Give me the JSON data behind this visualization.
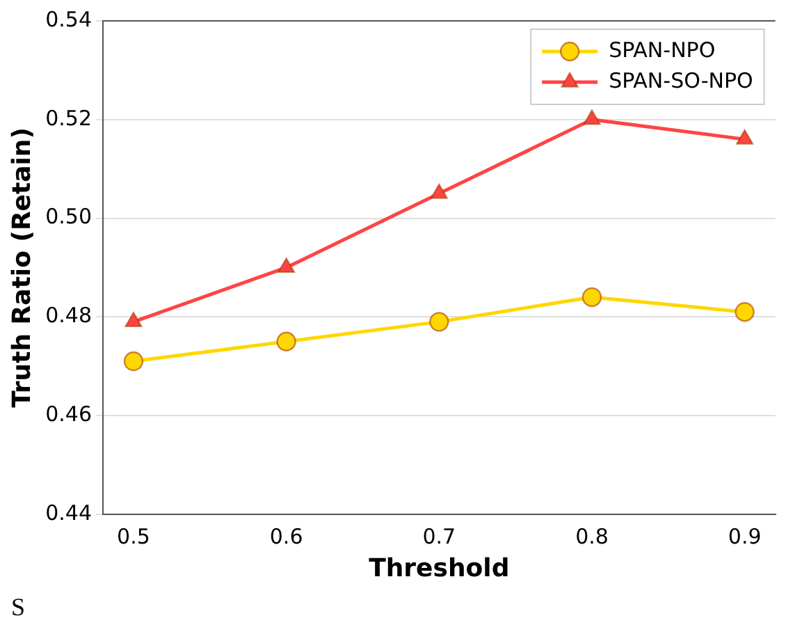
{
  "chart_data": {
    "type": "line",
    "xlabel": "Threshold",
    "ylabel": "Truth Ratio (Retain)",
    "x": [
      0.5,
      0.6,
      0.7,
      0.8,
      0.9
    ],
    "xlim": [
      0.48,
      0.92
    ],
    "xticks": [
      0.5,
      0.6,
      0.7,
      0.8,
      0.9
    ],
    "ylim": [
      0.44,
      0.54
    ],
    "yticks": [
      {
        "value": 0.44,
        "label": "0.44"
      },
      {
        "value": 0.46,
        "label": "0.46"
      },
      {
        "value": 0.48,
        "label": "0.48"
      },
      {
        "value": 0.5,
        "label": "0.50"
      },
      {
        "value": 0.52,
        "label": "0.52"
      },
      {
        "value": 0.54,
        "label": "0.54"
      }
    ],
    "grid": "y",
    "legend": "top right",
    "line_style": "solid",
    "series": [
      {
        "name": "SPAN-NPO",
        "color": "#ffd700",
        "marker": "circle",
        "values": [
          0.471,
          0.475,
          0.479,
          0.484,
          0.481
        ]
      },
      {
        "name": "SPAN-SO-NPO",
        "color": "#ff4444",
        "marker": "triangle",
        "values": [
          0.479,
          0.49,
          0.505,
          0.52,
          0.516
        ]
      }
    ],
    "annotations": [
      "S"
    ]
  }
}
